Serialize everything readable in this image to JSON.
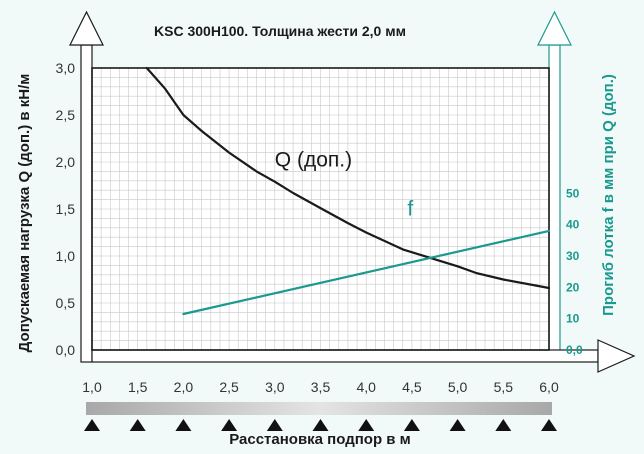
{
  "chart_data": {
    "type": "line",
    "title": "KSC 300H100. Толщина жести 2,0 мм",
    "xlabel": "Расстановка подпор в м",
    "ylabel_left": "Допускаемая нагрузка Q (доп.) в кН/м",
    "ylabel_right": "Прогиб лотка f  в мм при Q (доп.)",
    "xlim": [
      1.0,
      6.0
    ],
    "ylim_left": [
      0,
      3.0
    ],
    "ylim_right": [
      0,
      90
    ],
    "x_ticks": [
      "1,0",
      "1,5",
      "2,0",
      "2,5",
      "3,0",
      "3,5",
      "4,0",
      "4,5",
      "5,0",
      "5,5",
      "6,0"
    ],
    "y_ticks_left": [
      "0,0",
      "0,5",
      "1,0",
      "1,5",
      "2,0",
      "2,5",
      "3,0"
    ],
    "y_ticks_right": [
      "0,0",
      "10",
      "20",
      "30",
      "40",
      "50"
    ],
    "grid": true,
    "series": [
      {
        "name": "Q (доп.)",
        "axis": "left",
        "color": "#1a1a1a",
        "label_at": [
          3.0,
          1.95
        ],
        "x": [
          1.6,
          1.8,
          2.0,
          2.2,
          2.5,
          2.8,
          3.0,
          3.2,
          3.5,
          3.8,
          4.0,
          4.4,
          4.8,
          5.0,
          5.2,
          5.5,
          6.0
        ],
        "y": [
          3.0,
          2.78,
          2.5,
          2.33,
          2.1,
          1.9,
          1.79,
          1.67,
          1.51,
          1.35,
          1.25,
          1.07,
          0.95,
          0.89,
          0.82,
          0.75,
          0.66
        ]
      },
      {
        "name": "f",
        "axis": "right",
        "color": "#1a9a8e",
        "label_at": [
          4.45,
          43
        ],
        "x": [
          2.0,
          6.0
        ],
        "y": [
          11.5,
          38
        ]
      }
    ]
  }
}
